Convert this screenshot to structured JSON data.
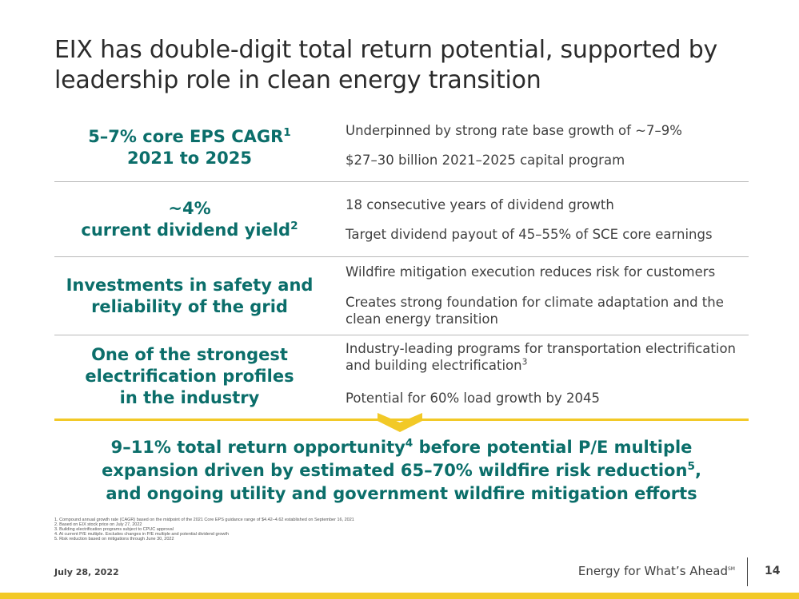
{
  "title": "EIX has double-digit total return potential, supported by leadership role in clean energy transition",
  "rows": [
    {
      "left_lines": [
        "5–7% core EPS CAGR",
        "2021 to 2025"
      ],
      "left_sup": "1",
      "right": [
        "Underpinned by strong rate base growth of ~7–9%",
        "$27–30 billion 2021–2025 capital program"
      ]
    },
    {
      "left_lines": [
        "~4%",
        "current dividend yield"
      ],
      "left_sup": "2",
      "right": [
        "18 consecutive years of dividend growth",
        "Target dividend payout of 45–55% of SCE core earnings"
      ]
    },
    {
      "left_lines": [
        "Investments in safety and",
        "reliability of the grid"
      ],
      "right": [
        "Wildfire mitigation execution reduces risk for customers",
        "Creates strong foundation for climate adaptation and the clean energy transition"
      ]
    },
    {
      "left_lines": [
        "One of the strongest",
        "electrification profiles",
        "in the industry"
      ],
      "right": [
        "Industry-leading programs for transportation electrification and building electrification",
        "Potential for 60% load growth by 2045"
      ],
      "right_sup": "3"
    }
  ],
  "summary": {
    "line1_a": "9–11% total return opportunity",
    "line1_sup": "4",
    "line1_b": " before potential P/E multiple",
    "line2_a": "expansion driven by estimated 65–70% wildfire risk reduction",
    "line2_sup": "5",
    "line2_b": ",",
    "line3": "and ongoing utility and government wildfire mitigation efforts"
  },
  "footnotes": [
    "1.  Compound annual growth rate (CAGR) based on the midpoint of the 2021 Core EPS guidance range of $4.42–4.62 established on September 16, 2021",
    "2.  Based on EIX stock price on July 27, 2022",
    "3.  Building electrification programs subject to CPUC approval",
    "4.  At current P/E multiple. Excludes changes in P/E multiple and potential dividend growth",
    "5.  Risk reduction based on mitigations through June 30, 2022"
  ],
  "footer": {
    "date": "July 28, 2022",
    "tagline": "Energy for What’s Ahead",
    "tagline_mark": "SM",
    "page": "14"
  },
  "colors": {
    "accent_teal": "#0b6e6a",
    "accent_yellow": "#f2c927"
  }
}
